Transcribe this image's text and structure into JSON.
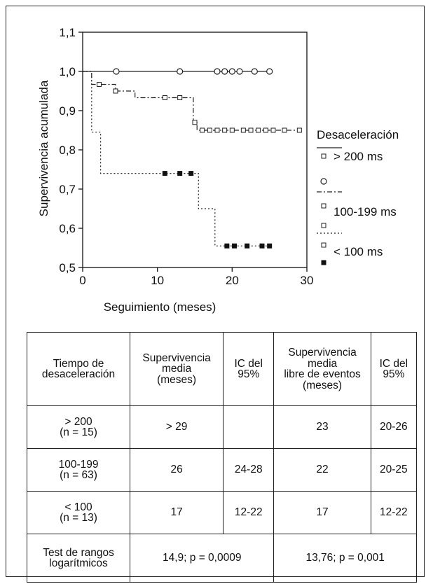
{
  "chart_data": {
    "type": "line",
    "subtype": "kaplan-meier step",
    "xlabel": "Seguimiento (meses)",
    "ylabel": "Supervivencia acumulada",
    "xlim": [
      0,
      30
    ],
    "ylim": [
      0.5,
      1.1
    ],
    "xticks": [
      "0",
      "10",
      "20",
      "30"
    ],
    "yticks": [
      "0,5",
      "0,6",
      "0,7",
      "0,8",
      "0,9",
      "1,0",
      "1,1"
    ],
    "grid": false,
    "legend_position": "right",
    "legend_title": "Desaceleración",
    "series": [
      {
        "name": "> 200 ms",
        "line_style": "solid",
        "marker": "open-circle",
        "steps": [
          [
            0,
            1.0
          ],
          [
            1.2,
            1.0
          ],
          [
            25,
            1.0
          ]
        ],
        "censored": [
          [
            4.5,
            1.0
          ],
          [
            13,
            1.0
          ],
          [
            18,
            1.0
          ],
          [
            19,
            1.0
          ],
          [
            20,
            1.0
          ],
          [
            21,
            1.0
          ],
          [
            23,
            1.0
          ],
          [
            25,
            1.0
          ]
        ]
      },
      {
        "name": "100-199 ms",
        "line_style": "dash-dot",
        "marker": "open-square",
        "steps": [
          [
            0,
            1.0
          ],
          [
            1.2,
            1.0
          ],
          [
            1.2,
            0.967
          ],
          [
            4.4,
            0.967
          ],
          [
            4.4,
            0.95
          ],
          [
            7,
            0.95
          ],
          [
            7,
            0.933
          ],
          [
            14.8,
            0.933
          ],
          [
            14.8,
            0.87
          ],
          [
            15.3,
            0.87
          ],
          [
            15.3,
            0.85
          ],
          [
            29,
            0.85
          ]
        ],
        "censored": [
          [
            2.2,
            0.967
          ],
          [
            4.4,
            0.95
          ],
          [
            11,
            0.933
          ],
          [
            13,
            0.933
          ],
          [
            15,
            0.87
          ],
          [
            16,
            0.85
          ],
          [
            17,
            0.85
          ],
          [
            18,
            0.85
          ],
          [
            19,
            0.85
          ],
          [
            20,
            0.85
          ],
          [
            21.5,
            0.85
          ],
          [
            22.5,
            0.85
          ],
          [
            23.5,
            0.85
          ],
          [
            24.5,
            0.85
          ],
          [
            25.5,
            0.85
          ],
          [
            27,
            0.85
          ],
          [
            29,
            0.85
          ]
        ]
      },
      {
        "name": "< 100 ms",
        "line_style": "dotted",
        "marker": "filled-square",
        "steps": [
          [
            0,
            1.0
          ],
          [
            1.2,
            1.0
          ],
          [
            1.2,
            0.845
          ],
          [
            2.4,
            0.845
          ],
          [
            2.4,
            0.74
          ],
          [
            15.5,
            0.74
          ],
          [
            15.5,
            0.65
          ],
          [
            17.7,
            0.65
          ],
          [
            17.7,
            0.555
          ],
          [
            25,
            0.555
          ]
        ],
        "censored": [
          [
            11,
            0.74
          ],
          [
            13,
            0.74
          ],
          [
            14.5,
            0.74
          ],
          [
            19.3,
            0.555
          ],
          [
            20.3,
            0.555
          ],
          [
            22,
            0.555
          ],
          [
            24,
            0.555
          ],
          [
            25,
            0.555
          ]
        ]
      }
    ]
  },
  "table": {
    "header": {
      "c1": [
        "Tiempo de",
        "desaceleración"
      ],
      "c2": [
        "Supervivencia",
        "media",
        "(meses)"
      ],
      "c3": [
        "IC del",
        "95%"
      ],
      "c4": [
        "Supervivencia",
        "media",
        "libre de eventos",
        "(meses)"
      ],
      "c5": [
        "IC del",
        "95%"
      ]
    },
    "rows": [
      {
        "group": [
          "> 200",
          "(n = 15)"
        ],
        "mean": "> 29",
        "ci": "",
        "event_free": "23",
        "ci2": "20-26"
      },
      {
        "group": [
          "100-199",
          "(n = 63)"
        ],
        "mean": "26",
        "ci": "24-28",
        "event_free": "22",
        "ci2": "20-25"
      },
      {
        "group": [
          "< 100",
          "(n = 13)"
        ],
        "mean": "17",
        "ci": "12-22",
        "event_free": "17",
        "ci2": "12-22"
      }
    ],
    "footer": {
      "label": [
        "Test de rangos",
        "logarítmicos"
      ],
      "value1": "14,9; p = 0,0009",
      "value2": "13,76; p = 0,001"
    }
  }
}
